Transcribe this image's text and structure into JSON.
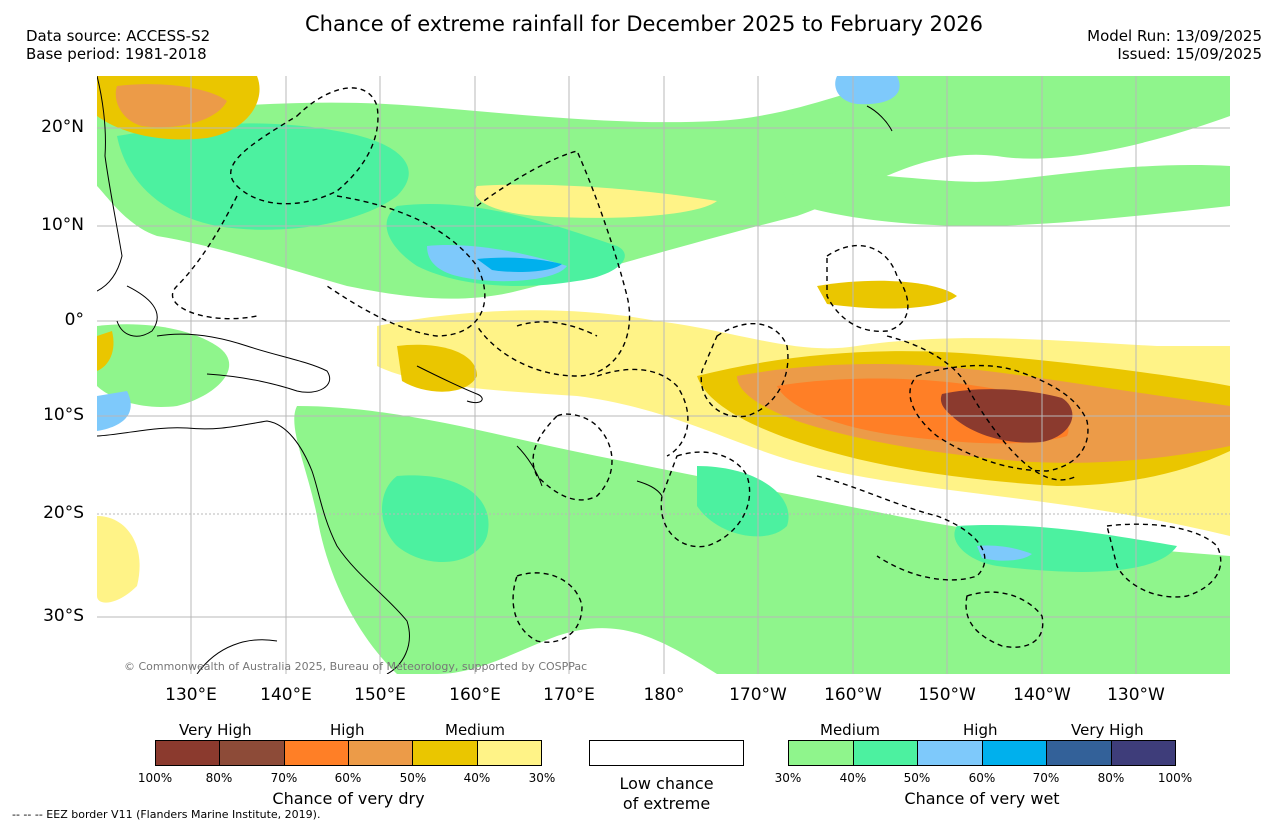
{
  "title": "Chance of extreme rainfall for December 2025 to February 2026",
  "meta_left": {
    "source": "Data source: ACCESS-S2",
    "base": "Base period: 1981-2018"
  },
  "meta_right": {
    "run": "Model Run: 13/09/2025",
    "issued": "Issued: 15/09/2025"
  },
  "lat_labels": [
    "20°N",
    "10°N",
    "0°",
    "10°S",
    "20°S",
    "30°S"
  ],
  "lon_labels": [
    "130°E",
    "140°E",
    "150°E",
    "160°E",
    "170°E",
    "180°",
    "170°W",
    "160°W",
    "150°W",
    "140°W",
    "130°W"
  ],
  "copyright": "© Commonwealth of Australia 2025, Bureau of Meteorology, supported by COSPPac",
  "legend": {
    "dry": {
      "categories": [
        "Very High",
        "High",
        "Medium"
      ],
      "colors": [
        "#8b3a2e",
        "#8d4b38",
        "#ff7f26",
        "#ec9b48",
        "#eac600",
        "#fff387"
      ],
      "ticks": [
        "100%",
        "80%",
        "70%",
        "60%",
        "50%",
        "40%",
        "30%"
      ],
      "caption": "Chance of very dry"
    },
    "low": {
      "caption_line1": "Low chance",
      "caption_line2": "of extreme"
    },
    "wet": {
      "categories": [
        "Medium",
        "High",
        "Very High"
      ],
      "colors": [
        "#8ff58c",
        "#4cf1a0",
        "#7ec9fb",
        "#00b0ed",
        "#336199",
        "#3e3d7a"
      ],
      "ticks": [
        "30%",
        "40%",
        "50%",
        "60%",
        "70%",
        "80%",
        "100%"
      ],
      "caption": "Chance of very wet"
    }
  },
  "footnote": "-- -- -- EEZ border V11 (Flanders Marine Institute, 2019)."
}
